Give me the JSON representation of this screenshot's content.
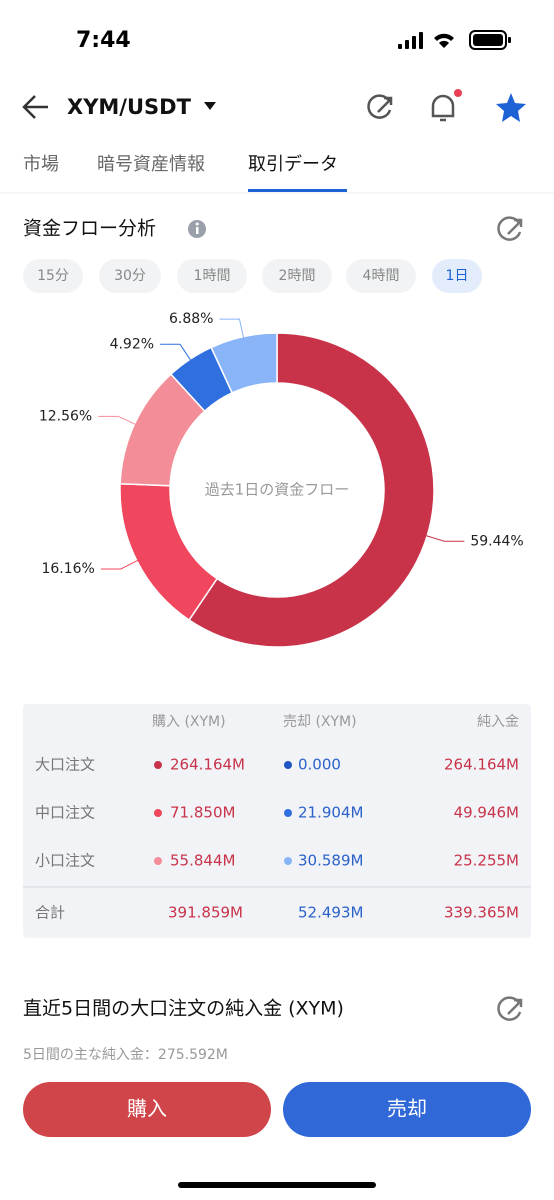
{
  "status_bar": {
    "time": "7:44"
  },
  "header": {
    "pair": "XYM/USDT"
  },
  "tabs": [
    "市場",
    "暗号資産情報",
    "取引データ"
  ],
  "section": {
    "title": "資金フロー分析",
    "intervals": [
      "15分",
      "30分",
      "1時間",
      "2時間",
      "4時間",
      "1日"
    ]
  },
  "chart_data": {
    "type": "pie",
    "center_label": "過去1日の資金フロー",
    "values": [
      59.44,
      16.16,
      12.56,
      4.92,
      6.88
    ],
    "value_labels": [
      "59.44%",
      "16.16%",
      "12.56%",
      "4.92%",
      "6.88%"
    ],
    "colors": [
      "#c8334a",
      "#f0475e",
      "#f38d98",
      "#2f6fe0",
      "#8ab4f8"
    ]
  },
  "table": {
    "header": [
      "購入 (XYM)",
      "売却 (XYM)",
      "純入金"
    ],
    "rows": [
      [
        "大口注文",
        "264.164M",
        "0.000",
        "264.164M"
      ],
      [
        "中口注文",
        "71.850M",
        "21.904M",
        "49.946M"
      ],
      [
        "小口注文",
        "55.844M",
        "30.589M",
        "25.255M"
      ]
    ],
    "total": [
      "合計",
      "391.859M",
      "52.493M",
      "339.365M"
    ]
  },
  "net_inflow": {
    "title": "直近5日間の大口注文の純入金 (XYM)",
    "subtitle": "5日間の主な純入金：275.592M"
  },
  "buttons": [
    "購入",
    "売却"
  ]
}
